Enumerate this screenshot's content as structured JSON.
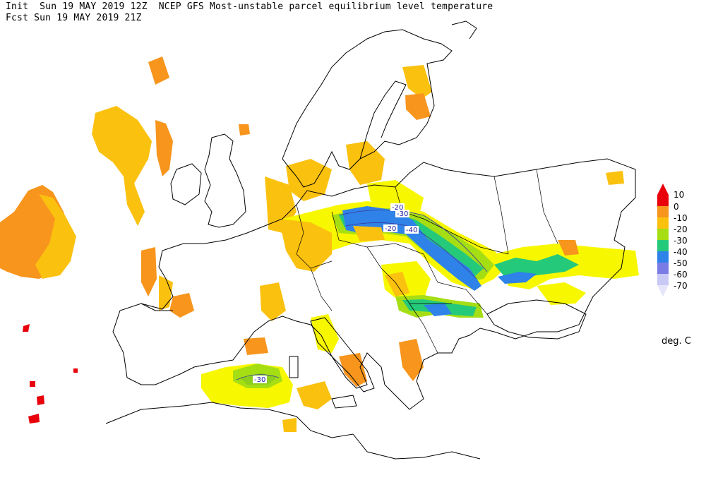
{
  "header": {
    "init_line": "Init  Sun 19 MAY 2019 12Z  NCEP GFS Most-unstable parcel equilibrium level temperature",
    "fcst_line": "Fcst Sun 19 MAY 2019 21Z"
  },
  "legend": {
    "unit": "deg. C",
    "items": [
      {
        "label": "10",
        "color": "#e8000b"
      },
      {
        "label": "0",
        "color": "#f7951d"
      },
      {
        "label": "-10",
        "color": "#fbc10f"
      },
      {
        "label": "-20",
        "color": "#f7f700"
      },
      {
        "label": "-30",
        "color": "#a6de14"
      },
      {
        "label": "-40",
        "color": "#25c97a"
      },
      {
        "label": "-50",
        "color": "#2f82e8"
      },
      {
        "label": "-60",
        "color": "#7b7be6"
      },
      {
        "label": "-70",
        "color": "#c9c9f5"
      }
    ],
    "bottom_color": "#e6e6fb"
  },
  "contour_labels": [
    "-20",
    "-30",
    "-20",
    "-40",
    "-30"
  ],
  "colors": {
    "coast": "#000000",
    "orange": "#f7951d",
    "gold": "#fbc10f",
    "yellow": "#f7f700",
    "lime": "#a6de14",
    "green": "#25c97a",
    "blue": "#2f82e8",
    "red": "#e8000b"
  }
}
